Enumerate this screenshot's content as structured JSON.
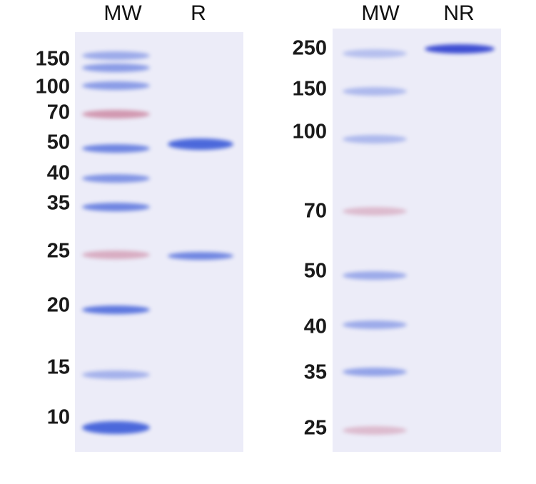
{
  "left_gel": {
    "lanes": [
      "MW",
      "R"
    ],
    "markers": [
      "150",
      "100",
      "70",
      "50",
      "40",
      "35",
      "25",
      "20",
      "15",
      "10"
    ]
  },
  "right_gel": {
    "lanes": [
      "MW",
      "NR"
    ],
    "markers": [
      "250",
      "150",
      "100",
      "70",
      "50",
      "40",
      "35",
      "25"
    ]
  },
  "colors": {
    "coomassie": "#3a5ad8",
    "pink_marker": "#c06080",
    "gel_background": "#ececf8"
  }
}
